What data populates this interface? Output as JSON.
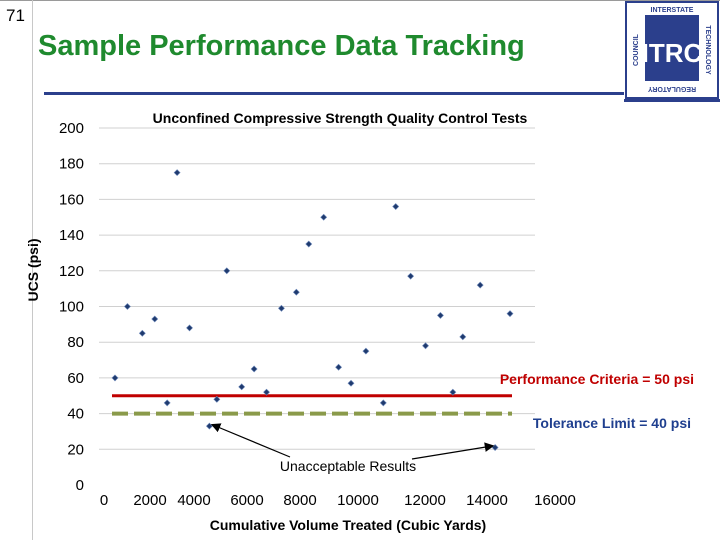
{
  "slide": {
    "number": "71",
    "title": "Sample Performance Data Tracking"
  },
  "logo": {
    "acronym": "ITRC",
    "top_text": "INTERSTATE",
    "left_text": "COUNCIL",
    "right_text": "TECHNOLOGY",
    "bottom_text": "REGULATORY",
    "color": "#2b3f8c"
  },
  "chart_data": {
    "type": "scatter",
    "title": "Unconfined Compressive Strength Quality Control Tests",
    "xlabel": "Cumulative Volume Treated (Cubic Yards)",
    "ylabel": "UCS (psi)",
    "xlim": [
      0,
      16000
    ],
    "ylim": [
      0,
      200
    ],
    "xticks": [
      "0",
      "2000",
      "4000",
      "6000",
      "8000",
      "10000",
      "12000",
      "14000",
      "16000"
    ],
    "yticks": [
      "0",
      "20",
      "40",
      "60",
      "80",
      "100",
      "120",
      "140",
      "160",
      "180",
      "200"
    ],
    "grid": "horizontal",
    "point_color": "#1f3a6e",
    "series": [
      {
        "points": [
          [
            500,
            60
          ],
          [
            1000,
            100
          ],
          [
            1600,
            85
          ],
          [
            2100,
            93
          ],
          [
            2600,
            46
          ],
          [
            3000,
            175
          ],
          [
            3500,
            88
          ],
          [
            4300,
            33
          ],
          [
            4600,
            48
          ],
          [
            5000,
            120
          ],
          [
            5600,
            55
          ],
          [
            6100,
            65
          ],
          [
            6600,
            52
          ],
          [
            7200,
            99
          ],
          [
            7800,
            108
          ],
          [
            8300,
            135
          ],
          [
            8900,
            150
          ],
          [
            9500,
            66
          ],
          [
            10000,
            57
          ],
          [
            10600,
            75
          ],
          [
            11300,
            46
          ],
          [
            11800,
            156
          ],
          [
            12400,
            117
          ],
          [
            13000,
            78
          ],
          [
            13600,
            95
          ],
          [
            14100,
            52
          ],
          [
            14500,
            83
          ],
          [
            15200,
            112
          ],
          [
            15800,
            21
          ],
          [
            16400,
            96
          ]
        ]
      }
    ],
    "reference_lines": [
      {
        "label": "Performance Criteria = 50 psi",
        "value": 50,
        "color": "#c00000",
        "style": "solid"
      },
      {
        "label": "Tolerance Limit = 40 psi",
        "value": 40,
        "color": "#8a9a4a",
        "style": "dashed"
      }
    ],
    "annotation": {
      "text": "Unacceptable Results"
    }
  }
}
